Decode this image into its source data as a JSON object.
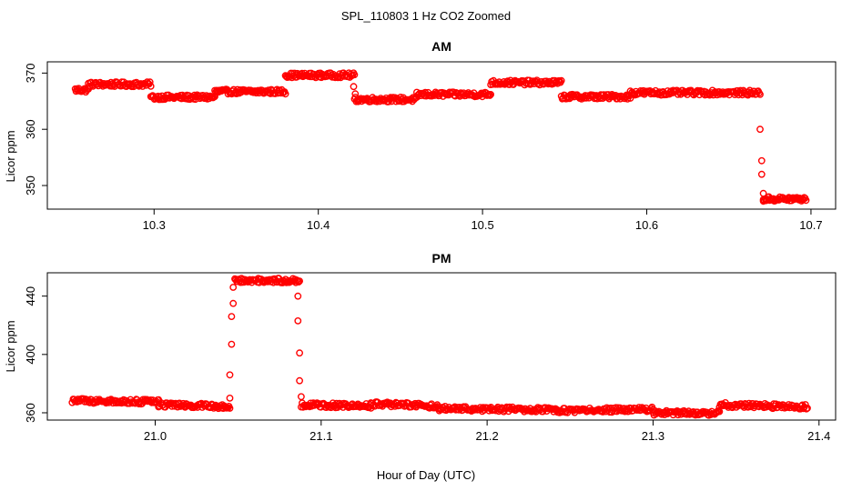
{
  "figure": {
    "title": "SPL_110803  1 Hz CO2 Zoomed",
    "xlabel": "Hour of Day (UTC)"
  },
  "colors": {
    "points": "#ff0000",
    "axes": "#000000",
    "background": "#ffffff"
  },
  "chart_data": [
    {
      "type": "scatter",
      "title": "AM",
      "xlabel": "",
      "ylabel": "Licor ppm",
      "xlim": [
        10.235,
        10.715
      ],
      "ylim": [
        345.8,
        372.0
      ],
      "xticks": [
        10.3,
        10.4,
        10.5,
        10.6,
        10.7
      ],
      "yticks": [
        350,
        360,
        370
      ],
      "marker": "open-circle",
      "series": [
        {
          "name": "CO2",
          "segments": [
            {
              "x0": 10.252,
              "x1": 10.26,
              "y": 367.0,
              "n": 16
            },
            {
              "x0": 10.26,
              "x1": 10.298,
              "y": 368.0,
              "n": 70
            },
            {
              "x0": 10.298,
              "x1": 10.337,
              "y": 365.7,
              "n": 70
            },
            {
              "x0": 10.337,
              "x1": 10.38,
              "y": 366.7,
              "n": 76
            },
            {
              "x0": 10.38,
              "x1": 10.422,
              "y": 369.6,
              "n": 76
            },
            {
              "x0": 10.422,
              "x1": 10.46,
              "y": 365.3,
              "n": 70
            },
            {
              "x0": 10.46,
              "x1": 10.505,
              "y": 366.2,
              "n": 80
            },
            {
              "x0": 10.505,
              "x1": 10.548,
              "y": 368.3,
              "n": 76
            },
            {
              "x0": 10.548,
              "x1": 10.59,
              "y": 365.8,
              "n": 76
            },
            {
              "x0": 10.59,
              "x1": 10.669,
              "y": 366.5,
              "n": 140
            },
            {
              "x0": 10.671,
              "x1": 10.697,
              "y": 347.6,
              "n": 48
            }
          ],
          "points": [
            {
              "x": 10.669,
              "y": 360.0
            },
            {
              "x": 10.67,
              "y": 354.4
            },
            {
              "x": 10.67,
              "y": 352.0
            },
            {
              "x": 10.671,
              "y": 348.6
            },
            {
              "x": 10.671,
              "y": 347.2
            },
            {
              "x": 10.4215,
              "y": 367.6
            },
            {
              "x": 10.4225,
              "y": 366.3
            }
          ]
        }
      ]
    },
    {
      "type": "scatter",
      "title": "PM",
      "xlabel": "Hour of Day (UTC)",
      "ylabel": "Licor ppm",
      "xlim": [
        20.935,
        21.41
      ],
      "ylim": [
        355.0,
        456.0
      ],
      "xticks": [
        21.0,
        21.1,
        21.2,
        21.3,
        21.4
      ],
      "yticks": [
        360,
        400,
        440
      ],
      "marker": "open-circle",
      "series": [
        {
          "name": "CO2",
          "segments": [
            {
              "x0": 20.95,
              "x1": 21.002,
              "y0": 368.3,
              "y1": 367.4,
              "n": 90
            },
            {
              "x0": 21.002,
              "x1": 21.045,
              "y0": 365.5,
              "y1": 364.3,
              "n": 76
            },
            {
              "x0": 21.048,
              "x1": 21.087,
              "y0": 450.6,
              "y1": 450.8,
              "n": 70
            },
            {
              "x0": 21.088,
              "x1": 21.13,
              "y0": 365.4,
              "y1": 364.7,
              "n": 76
            },
            {
              "x0": 21.13,
              "x1": 21.17,
              "y0": 366.2,
              "y1": 364.6,
              "n": 70
            },
            {
              "x0": 21.17,
              "x1": 21.24,
              "y0": 363.0,
              "y1": 362.0,
              "n": 120
            },
            {
              "x0": 21.24,
              "x1": 21.3,
              "y0": 361.4,
              "y1": 362.3,
              "n": 100
            },
            {
              "x0": 21.3,
              "x1": 21.34,
              "y0": 359.9,
              "y1": 359.9,
              "n": 70
            },
            {
              "x0": 21.34,
              "x1": 21.393,
              "y0": 365.4,
              "y1": 364.0,
              "n": 90
            }
          ],
          "points": [
            {
              "x": 21.045,
              "y": 370.0
            },
            {
              "x": 21.045,
              "y": 386.0
            },
            {
              "x": 21.046,
              "y": 407.0
            },
            {
              "x": 21.046,
              "y": 426.0
            },
            {
              "x": 21.047,
              "y": 435.0
            },
            {
              "x": 21.047,
              "y": 446.0
            },
            {
              "x": 21.086,
              "y": 440.0
            },
            {
              "x": 21.086,
              "y": 423.0
            },
            {
              "x": 21.087,
              "y": 401.0
            },
            {
              "x": 21.087,
              "y": 382.0
            },
            {
              "x": 21.088,
              "y": 371.0
            }
          ]
        }
      ]
    }
  ]
}
